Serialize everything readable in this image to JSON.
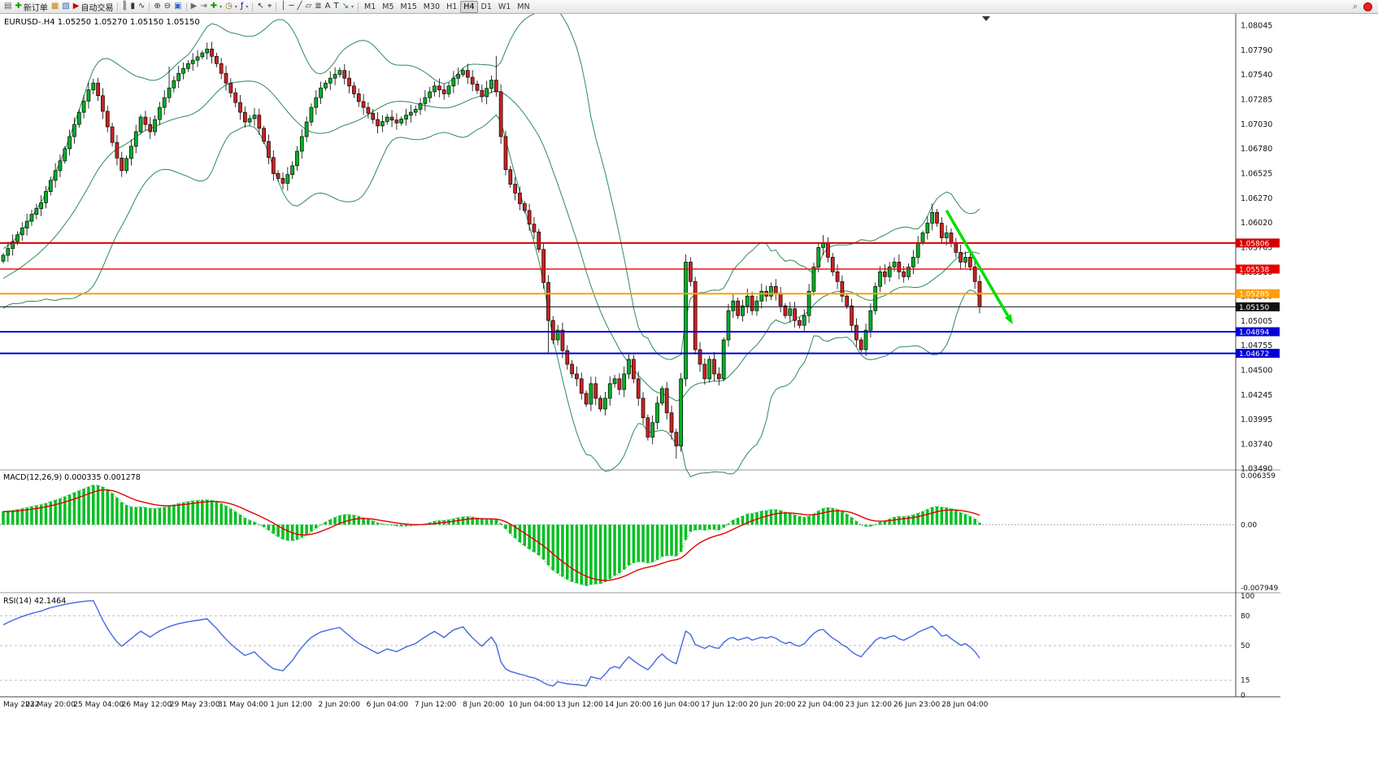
{
  "toolbar": {
    "items": [
      {
        "name": "new-chart-icon",
        "glyph": "▤",
        "color": "#5a5a5a"
      },
      {
        "name": "new-order-button",
        "glyph": "✚",
        "color": "#00a000",
        "label": "新订单"
      },
      {
        "name": "market-watch-icon",
        "glyph": "▦",
        "color": "#b8860b"
      },
      {
        "name": "navigator-icon",
        "glyph": "▧",
        "color": "#3366cc"
      },
      {
        "name": "autotrade-button",
        "glyph": "▶",
        "color": "#cc0000",
        "label": "自动交易"
      },
      {
        "divider": true
      },
      {
        "name": "bar-chart-icon",
        "glyph": "║",
        "color": "#333333"
      },
      {
        "name": "candlestick-chart-icon",
        "glyph": "▮",
        "color": "#333333"
      },
      {
        "name": "line-chart-icon",
        "glyph": "∿",
        "color": "#333333"
      },
      {
        "divider": true
      },
      {
        "name": "zoom-in-icon",
        "glyph": "⊕",
        "color": "#333333"
      },
      {
        "name": "zoom-out-icon",
        "glyph": "⊖",
        "color": "#333333"
      },
      {
        "name": "tile-windows-icon",
        "glyph": "▣",
        "color": "#3366cc"
      },
      {
        "divider": true
      },
      {
        "name": "auto-scroll-icon",
        "glyph": "▶",
        "color": "#666666"
      },
      {
        "name": "chart-shift-icon",
        "glyph": "⇥",
        "color": "#666666"
      },
      {
        "name": "add-chart-icon",
        "glyph": "✚",
        "color": "#00a000",
        "dropdown": true
      },
      {
        "name": "period-clock-icon",
        "glyph": "◷",
        "color": "#8a6d00",
        "dropdown": true
      },
      {
        "name": "indicators-icon",
        "glyph": "ƒ",
        "color": "#0000cc",
        "dropdown": true
      },
      {
        "divider": true
      },
      {
        "name": "cursor-icon",
        "glyph": "↖",
        "color": "#333333"
      },
      {
        "name": "crosshair-icon",
        "glyph": "⌖",
        "color": "#333333"
      },
      {
        "divider": true
      },
      {
        "name": "vertical-line-icon",
        "glyph": "│",
        "color": "#333333"
      },
      {
        "name": "horizontal-line-icon",
        "glyph": "─",
        "color": "#333333"
      },
      {
        "name": "trendline-icon",
        "glyph": "╱",
        "color": "#333333"
      },
      {
        "name": "equidistant-channel-icon",
        "glyph": "▱",
        "color": "#333333"
      },
      {
        "name": "fibonacci-icon",
        "glyph": "≣",
        "color": "#333333"
      },
      {
        "name": "text-icon",
        "glyph": "A",
        "color": "#333333"
      },
      {
        "name": "label-icon",
        "glyph": "T",
        "color": "#333333"
      },
      {
        "name": "arrows-icon",
        "glyph": "↘",
        "color": "#008800",
        "dropdown": true
      },
      {
        "divider": true
      }
    ],
    "timeframes": [
      {
        "label": "M1",
        "active": false
      },
      {
        "label": "M5",
        "active": false
      },
      {
        "label": "M15",
        "active": false
      },
      {
        "label": "M30",
        "active": false
      },
      {
        "label": "H1",
        "active": false
      },
      {
        "label": "H4",
        "active": true
      },
      {
        "label": "D1",
        "active": false
      },
      {
        "label": "W1",
        "active": false
      },
      {
        "label": "MN",
        "active": false
      }
    ],
    "search_glyph": "⌕"
  },
  "chart": {
    "title": "EURUSD-.H4 1.05250 1.05270 1.05150 1.05150",
    "symbol": "EURUSD-",
    "period": "H4",
    "ohlc": {
      "open": "1.05250",
      "high": "1.05270",
      "low": "1.05150",
      "close": "1.05150"
    },
    "price_axis_labels": [
      "1.08045",
      "1.07790",
      "1.07540",
      "1.07285",
      "1.07030",
      "1.06780",
      "1.06525",
      "1.06270",
      "1.06020",
      "1.05765",
      "1.05510",
      "1.05260",
      "1.05005",
      "1.04755",
      "1.04500",
      "1.04245",
      "1.03995",
      "1.03740",
      "1.03490"
    ],
    "time_axis_labels": [
      "May 2022",
      "23 May 20:00",
      "25 May 04:00",
      "26 May 12:00",
      "29 May 23:00",
      "31 May 04:00",
      "1 Jun 12:00",
      "2 Jun 20:00",
      "6 Jun 04:00",
      "7 Jun 12:00",
      "8 Jun 20:00",
      "10 Jun 04:00",
      "13 Jun 12:00",
      "14 Jun 20:00",
      "16 Jun 04:00",
      "17 Jun 12:00",
      "20 Jun 20:00",
      "22 Jun 04:00",
      "23 Jun 12:00",
      "26 Jun 23:00",
      "28 Jun 04:00"
    ],
    "hlines": [
      {
        "price": 1.05806,
        "label": "1.05806",
        "color": "#D40000",
        "width": 2
      },
      {
        "price": 1.05538,
        "label": "1.05538",
        "color": "#E80000",
        "width": 1.4
      },
      {
        "price": 1.05285,
        "label": "1.05285",
        "color": "#FFA000",
        "width": 2
      },
      {
        "price": 1.04894,
        "label": "1.04894",
        "color": "#0000D8",
        "width": 2
      },
      {
        "price": 1.04672,
        "label": "1.04672",
        "color": "#0000D8",
        "width": 2
      }
    ],
    "bid_line": {
      "price": 1.0515,
      "label": "1.05150",
      "color": "#1a1a1a",
      "width": 1
    },
    "arrow": {
      "from_index": 199,
      "from_price": 1.0614,
      "to_index": 213,
      "to_price": 1.0497,
      "color": "#00DE00"
    },
    "colors": {
      "up": "#00B227",
      "down": "#CC2222",
      "wick": "#000000",
      "bollinger": "#2E8B57"
    }
  },
  "macd": {
    "label": "MACD(12,26,9) 0.000335 0.001278",
    "value": "0.000335",
    "signal_value": "0.001278",
    "scale": {
      "max_label": "0.006359",
      "zero_label": "0.00",
      "min_label": "-0.007949",
      "max": 0.006359,
      "min": -0.007949
    },
    "colors": {
      "hist": "#00C020",
      "signal": "#E60000",
      "main_dots": "#22B14C"
    }
  },
  "rsi": {
    "label": "RSI(14) 42.1464",
    "value": "42.1464",
    "axis_labels": [
      100,
      80,
      50,
      15,
      0
    ],
    "level_lines": [
      80,
      50,
      15
    ],
    "color": "#4169E1"
  },
  "chart_data": {
    "type": "candlestick+indicators",
    "symbol": "EURUSD-",
    "timeframe": "H4",
    "candle_count": 207,
    "indicators": [
      {
        "name": "Bollinger Bands",
        "period": 20,
        "deviation": 2
      },
      {
        "name": "MACD",
        "fast": 12,
        "slow": 26,
        "signal": 9
      },
      {
        "name": "RSI",
        "period": 14
      }
    ],
    "close_path_anchors": [
      [
        0,
        1.0568
      ],
      [
        2,
        1.0582
      ],
      [
        4,
        1.0596
      ],
      [
        6,
        1.061
      ],
      [
        8,
        1.0622
      ],
      [
        10,
        1.0645
      ],
      [
        12,
        1.0665
      ],
      [
        14,
        1.069
      ],
      [
        16,
        1.0715
      ],
      [
        18,
        1.0738
      ],
      [
        19,
        1.0745
      ],
      [
        20,
        1.0732
      ],
      [
        22,
        1.07
      ],
      [
        24,
        1.0668
      ],
      [
        25,
        1.0655
      ],
      [
        27,
        1.068
      ],
      [
        29,
        1.071
      ],
      [
        31,
        1.0695
      ],
      [
        33,
        1.072
      ],
      [
        35,
        1.074
      ],
      [
        37,
        1.0755
      ],
      [
        39,
        1.0765
      ],
      [
        41,
        1.0772
      ],
      [
        43,
        1.078
      ],
      [
        45,
        1.0765
      ],
      [
        47,
        1.0745
      ],
      [
        49,
        1.0725
      ],
      [
        51,
        1.0705
      ],
      [
        53,
        1.0712
      ],
      [
        55,
        1.0685
      ],
      [
        57,
        1.0652
      ],
      [
        59,
        1.0642
      ],
      [
        61,
        1.066
      ],
      [
        63,
        1.069
      ],
      [
        65,
        1.072
      ],
      [
        67,
        1.074
      ],
      [
        69,
        1.075
      ],
      [
        71,
        1.0758
      ],
      [
        73,
        1.0742
      ],
      [
        75,
        1.0726
      ],
      [
        77,
        1.0714
      ],
      [
        79,
        1.0701
      ],
      [
        81,
        1.071
      ],
      [
        83,
        1.0704
      ],
      [
        85,
        1.0712
      ],
      [
        87,
        1.0718
      ],
      [
        89,
        1.073
      ],
      [
        91,
        1.0742
      ],
      [
        93,
        1.0734
      ],
      [
        95,
        1.075
      ],
      [
        97,
        1.0758
      ],
      [
        99,
        1.0744
      ],
      [
        101,
        1.0731
      ],
      [
        103,
        1.0748
      ],
      [
        104,
        1.0736
      ],
      [
        105,
        1.069
      ],
      [
        106,
        1.0656
      ],
      [
        107,
        1.0641
      ],
      [
        108,
        1.0632
      ],
      [
        109,
        1.0621
      ],
      [
        110,
        1.0614
      ],
      [
        111,
        1.06
      ],
      [
        112,
        1.0592
      ],
      [
        113,
        1.0574
      ],
      [
        114,
        1.054
      ],
      [
        115,
        1.0501
      ],
      [
        116,
        1.0481
      ],
      [
        117,
        1.0491
      ],
      [
        118,
        1.047
      ],
      [
        119,
        1.0456
      ],
      [
        120,
        1.0446
      ],
      [
        121,
        1.0441
      ],
      [
        122,
        1.0426
      ],
      [
        123,
        1.0415
      ],
      [
        124,
        1.0436
      ],
      [
        125,
        1.0421
      ],
      [
        126,
        1.041
      ],
      [
        127,
        1.0421
      ],
      [
        128,
        1.0436
      ],
      [
        129,
        1.0441
      ],
      [
        130,
        1.043
      ],
      [
        131,
        1.0446
      ],
      [
        132,
        1.0461
      ],
      [
        133,
        1.0441
      ],
      [
        134,
        1.0421
      ],
      [
        135,
        1.0401
      ],
      [
        136,
        1.0381
      ],
      [
        137,
        1.0396
      ],
      [
        138,
        1.0416
      ],
      [
        139,
        1.0431
      ],
      [
        140,
        1.0406
      ],
      [
        141,
        1.0386
      ],
      [
        142,
        1.0372
      ],
      [
        143,
        1.0441
      ],
      [
        144,
        1.0561
      ],
      [
        145,
        1.0541
      ],
      [
        146,
        1.0471
      ],
      [
        147,
        1.0456
      ],
      [
        148,
        1.0441
      ],
      [
        149,
        1.0461
      ],
      [
        150,
        1.0446
      ],
      [
        151,
        1.0441
      ],
      [
        152,
        1.0481
      ],
      [
        153,
        1.0511
      ],
      [
        154,
        1.0521
      ],
      [
        155,
        1.0506
      ],
      [
        156,
        1.0516
      ],
      [
        157,
        1.0526
      ],
      [
        158,
        1.0511
      ],
      [
        159,
        1.0521
      ],
      [
        160,
        1.0531
      ],
      [
        161,
        1.0526
      ],
      [
        162,
        1.0536
      ],
      [
        163,
        1.0529
      ],
      [
        164,
        1.0516
      ],
      [
        165,
        1.0506
      ],
      [
        166,
        1.0513
      ],
      [
        167,
        1.0501
      ],
      [
        168,
        1.0496
      ],
      [
        169,
        1.0506
      ],
      [
        170,
        1.0531
      ],
      [
        171,
        1.0556
      ],
      [
        172,
        1.0576
      ],
      [
        173,
        1.0581
      ],
      [
        174,
        1.0566
      ],
      [
        175,
        1.0551
      ],
      [
        176,
        1.0541
      ],
      [
        177,
        1.0526
      ],
      [
        178,
        1.0516
      ],
      [
        179,
        1.0496
      ],
      [
        180,
        1.0481
      ],
      [
        181,
        1.0471
      ],
      [
        182,
        1.0491
      ],
      [
        183,
        1.0511
      ],
      [
        184,
        1.0536
      ],
      [
        185,
        1.0551
      ],
      [
        186,
        1.0546
      ],
      [
        187,
        1.0556
      ],
      [
        188,
        1.0561
      ],
      [
        189,
        1.0551
      ],
      [
        190,
        1.0546
      ],
      [
        191,
        1.0556
      ],
      [
        192,
        1.0566
      ],
      [
        193,
        1.0581
      ],
      [
        194,
        1.0591
      ],
      [
        195,
        1.0601
      ],
      [
        196,
        1.0612
      ],
      [
        197,
        1.0601
      ],
      [
        198,
        1.0586
      ],
      [
        199,
        1.0591
      ],
      [
        200,
        1.0581
      ],
      [
        201,
        1.0571
      ],
      [
        202,
        1.0561
      ],
      [
        203,
        1.0566
      ],
      [
        204,
        1.0556
      ],
      [
        205,
        1.0541
      ],
      [
        206,
        1.0515
      ]
    ],
    "wick_spikes": [
      {
        "i": 35,
        "side": "high",
        "price": 1.0762
      },
      {
        "i": 104,
        "side": "high",
        "price": 1.0773
      },
      {
        "i": 115,
        "side": "low",
        "price": 1.0468
      },
      {
        "i": 142,
        "side": "low",
        "price": 1.0359
      },
      {
        "i": 196,
        "side": "high",
        "price": 1.0621
      }
    ]
  }
}
